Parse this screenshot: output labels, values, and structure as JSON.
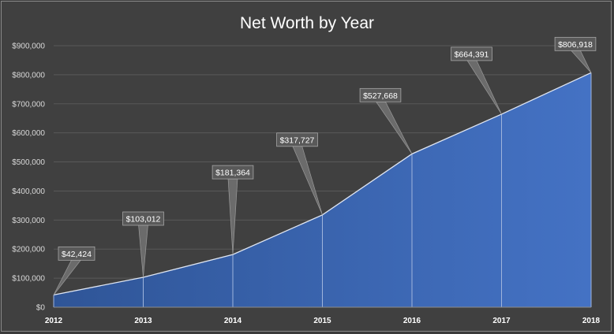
{
  "chart_data": {
    "type": "area",
    "title": "Net Worth by Year",
    "xlabel": "",
    "ylabel": "",
    "categories": [
      "2012",
      "2013",
      "2014",
      "2015",
      "2016",
      "2017",
      "2018"
    ],
    "values": [
      42424,
      103012,
      181364,
      317727,
      527668,
      664391,
      806918
    ],
    "data_labels": [
      "$42,424",
      "$103,012",
      "$181,364",
      "$317,727",
      "$527,668",
      "$664,391",
      "$806,918"
    ],
    "y_ticks": [
      "$0",
      "$100,000",
      "$200,000",
      "$300,000",
      "$400,000",
      "$500,000",
      "$600,000",
      "$700,000",
      "$800,000",
      "$900,000"
    ],
    "ylim": [
      0,
      900000
    ],
    "grid": true,
    "legend": "none",
    "colors": {
      "background": "#404040",
      "fill_start": "#2f5597",
      "fill_end": "#4472c4",
      "line": "#dfe6f3",
      "grid": "#595959",
      "label_box": "#595959"
    }
  }
}
